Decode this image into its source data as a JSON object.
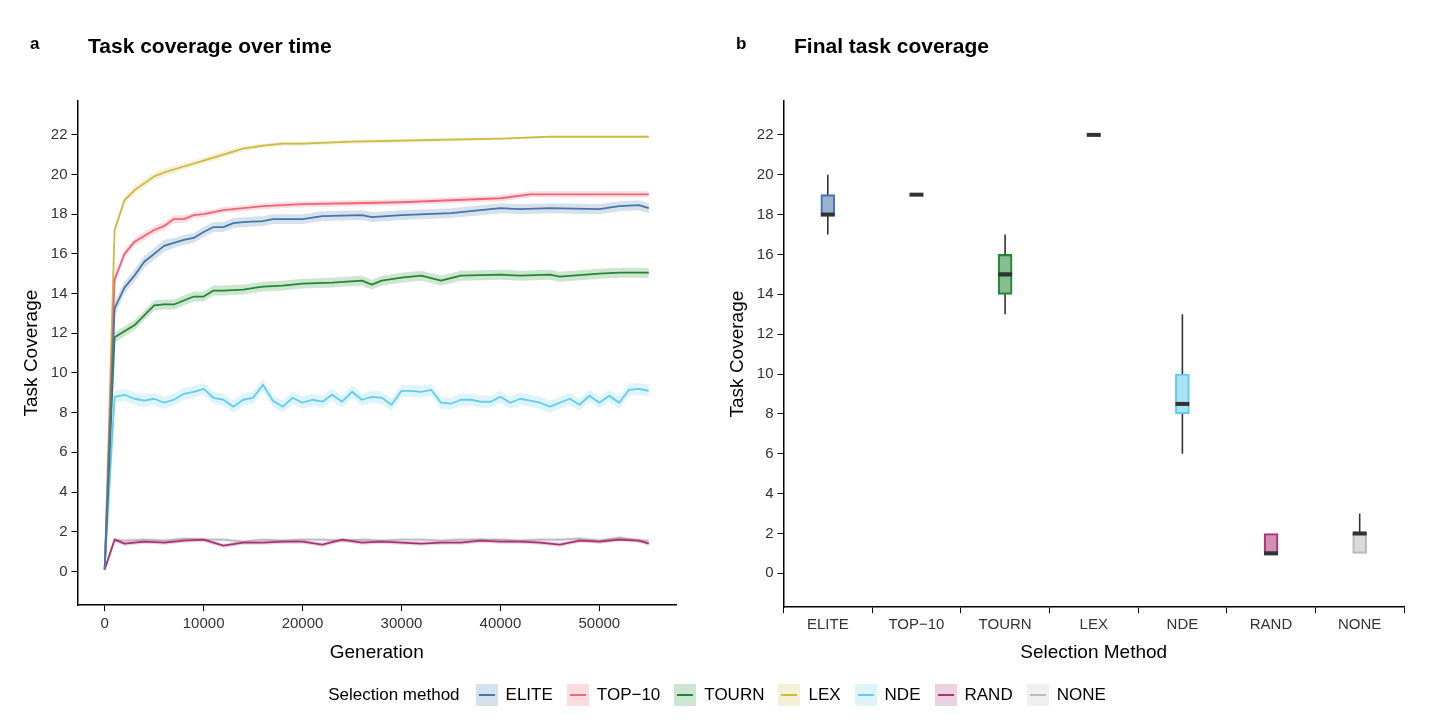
{
  "chart_data": [
    {
      "type": "line",
      "title": "Task coverage over time",
      "xlabel": "Generation",
      "ylabel": "Task Coverage",
      "annotations": [
        "a"
      ],
      "legend": "bottom",
      "legend_title": "Selection method",
      "xlim": [
        -2750,
        57750
      ],
      "ylim": [
        -1.7,
        23.7
      ],
      "xticks": [
        0,
        10000,
        20000,
        30000,
        40000,
        50000
      ],
      "yticks": [
        0,
        2,
        4,
        6,
        8,
        10,
        12,
        14,
        16,
        18,
        20,
        22
      ],
      "series": [
        {
          "name": "ELITE",
          "color": "#4477aa",
          "x": [
            0,
            1000,
            2000,
            3000,
            4000,
            5000,
            6000,
            7000,
            8000,
            9000,
            10000,
            11000,
            12000,
            13000,
            14000,
            16000,
            17000,
            20000,
            22000,
            26000,
            27000,
            30000,
            35000,
            38000,
            40000,
            42000,
            45000,
            50000,
            52000,
            54000,
            55000
          ],
          "values": [
            0.1,
            13.25,
            14.3,
            14.9,
            15.6,
            16.0,
            16.4,
            16.55,
            16.7,
            16.8,
            17.1,
            17.35,
            17.35,
            17.55,
            17.6,
            17.65,
            17.75,
            17.75,
            17.9,
            17.95,
            17.85,
            17.95,
            18.05,
            18.2,
            18.3,
            18.25,
            18.3,
            18.25,
            18.4,
            18.45,
            18.3
          ],
          "lower": [
            0.1,
            12.9,
            14.0,
            14.6,
            15.3,
            15.7,
            16.1,
            16.3,
            16.45,
            16.55,
            16.85,
            17.1,
            17.1,
            17.3,
            17.35,
            17.4,
            17.5,
            17.5,
            17.65,
            17.7,
            17.6,
            17.7,
            17.8,
            17.95,
            18.05,
            18.0,
            18.05,
            18.0,
            18.15,
            18.2,
            18.05
          ],
          "upper": [
            0.1,
            13.6,
            14.6,
            15.2,
            15.9,
            16.3,
            16.7,
            16.8,
            16.95,
            17.05,
            17.35,
            17.6,
            17.6,
            17.8,
            17.85,
            17.9,
            18.0,
            18.0,
            18.15,
            18.2,
            18.1,
            18.2,
            18.3,
            18.45,
            18.55,
            18.5,
            18.55,
            18.5,
            18.65,
            18.7,
            18.55
          ]
        },
        {
          "name": "TOP−10",
          "color": "#ee6677",
          "x": [
            0,
            1000,
            2000,
            3000,
            4000,
            5000,
            6000,
            7000,
            8000,
            9000,
            10000,
            12000,
            14000,
            16000,
            20000,
            25000,
            30000,
            35000,
            40000,
            43000,
            50000,
            55000
          ],
          "values": [
            0.1,
            14.7,
            16.0,
            16.6,
            16.9,
            17.2,
            17.4,
            17.75,
            17.75,
            17.95,
            18.0,
            18.2,
            18.3,
            18.4,
            18.5,
            18.55,
            18.6,
            18.7,
            18.8,
            19.0,
            19.0,
            19.0
          ],
          "lower": [
            0.1,
            14.4,
            15.8,
            16.4,
            16.7,
            17.0,
            17.2,
            17.55,
            17.55,
            17.8,
            17.85,
            18.05,
            18.15,
            18.25,
            18.35,
            18.4,
            18.45,
            18.55,
            18.65,
            18.85,
            18.85,
            18.85
          ],
          "upper": [
            0.1,
            15.0,
            16.2,
            16.8,
            17.1,
            17.4,
            17.6,
            17.95,
            17.95,
            18.1,
            18.15,
            18.35,
            18.45,
            18.55,
            18.65,
            18.7,
            18.75,
            18.85,
            18.95,
            19.15,
            19.15,
            19.15
          ]
        },
        {
          "name": "TOURN",
          "color": "#228833",
          "x": [
            0,
            1000,
            2000,
            3000,
            4000,
            5000,
            6000,
            7000,
            8000,
            9000,
            10000,
            11000,
            12000,
            14000,
            16000,
            18000,
            20000,
            23000,
            26000,
            27000,
            28000,
            30000,
            32000,
            34000,
            36000,
            40000,
            42000,
            45000,
            46000,
            50000,
            52000,
            55000
          ],
          "values": [
            0.1,
            11.8,
            12.1,
            12.4,
            12.9,
            13.4,
            13.45,
            13.45,
            13.65,
            13.85,
            13.85,
            14.15,
            14.15,
            14.2,
            14.35,
            14.4,
            14.5,
            14.55,
            14.65,
            14.45,
            14.65,
            14.8,
            14.9,
            14.65,
            14.9,
            14.95,
            14.9,
            14.95,
            14.85,
            15.0,
            15.05,
            15.05
          ],
          "lower": [
            0.1,
            11.55,
            11.85,
            12.15,
            12.65,
            13.15,
            13.2,
            13.2,
            13.4,
            13.6,
            13.6,
            13.9,
            13.9,
            13.95,
            14.1,
            14.15,
            14.25,
            14.3,
            14.4,
            14.2,
            14.4,
            14.55,
            14.65,
            14.4,
            14.65,
            14.7,
            14.65,
            14.7,
            14.6,
            14.75,
            14.8,
            14.8
          ],
          "upper": [
            0.1,
            12.05,
            12.35,
            12.65,
            13.15,
            13.65,
            13.7,
            13.7,
            13.9,
            14.1,
            14.1,
            14.4,
            14.4,
            14.45,
            14.6,
            14.65,
            14.75,
            14.8,
            14.9,
            14.7,
            14.9,
            15.05,
            15.15,
            14.9,
            15.15,
            15.2,
            15.15,
            15.2,
            15.1,
            15.25,
            15.3,
            15.3
          ]
        },
        {
          "name": "LEX",
          "color": "#ccbb44",
          "x": [
            0,
            1000,
            2000,
            3000,
            4000,
            5000,
            6000,
            8000,
            10000,
            12000,
            14000,
            16000,
            18000,
            20000,
            25000,
            30000,
            35000,
            40000,
            45000,
            50000,
            55000
          ],
          "values": [
            0.1,
            17.2,
            18.7,
            19.2,
            19.55,
            19.9,
            20.1,
            20.4,
            20.7,
            21.0,
            21.3,
            21.45,
            21.55,
            21.55,
            21.65,
            21.7,
            21.75,
            21.8,
            21.9,
            21.9,
            21.9
          ],
          "lower": [
            0.1,
            17.0,
            18.5,
            19.0,
            19.35,
            19.7,
            19.9,
            20.25,
            20.55,
            20.85,
            21.15,
            21.35,
            21.45,
            21.45,
            21.55,
            21.6,
            21.65,
            21.75,
            21.85,
            21.85,
            21.85
          ],
          "upper": [
            0.1,
            17.4,
            18.9,
            19.4,
            19.75,
            20.1,
            20.3,
            20.55,
            20.85,
            21.15,
            21.45,
            21.55,
            21.65,
            21.65,
            21.75,
            21.8,
            21.85,
            21.85,
            21.95,
            21.95,
            21.95
          ]
        },
        {
          "name": "NDE",
          "color": "#66ccee",
          "x": [
            0,
            1000,
            2000,
            3000,
            4000,
            5000,
            6000,
            7000,
            8000,
            9000,
            10000,
            11000,
            12000,
            13000,
            14000,
            15000,
            16000,
            17000,
            18000,
            19000,
            20000,
            21000,
            22000,
            23000,
            24000,
            25000,
            26000,
            27000,
            28000,
            29000,
            30000,
            31000,
            32000,
            33000,
            34000,
            35000,
            36000,
            37000,
            38000,
            39000,
            40000,
            41000,
            42000,
            43000,
            44000,
            45000,
            46000,
            47000,
            48000,
            49000,
            50000,
            51000,
            52000,
            53000,
            54000,
            55000
          ],
          "values": [
            0.1,
            8.8,
            8.9,
            8.7,
            8.6,
            8.7,
            8.5,
            8.65,
            8.95,
            9.05,
            9.2,
            8.75,
            8.65,
            8.3,
            8.65,
            8.75,
            9.4,
            8.6,
            8.3,
            8.75,
            8.5,
            8.65,
            8.55,
            8.9,
            8.55,
            9.05,
            8.65,
            8.8,
            8.75,
            8.4,
            9.1,
            9.1,
            9.05,
            9.15,
            8.5,
            8.45,
            8.65,
            8.65,
            8.55,
            8.55,
            8.8,
            8.5,
            8.7,
            8.6,
            8.5,
            8.3,
            8.5,
            8.7,
            8.4,
            8.85,
            8.5,
            8.85,
            8.5,
            9.15,
            9.2,
            9.1
          ],
          "lower": [
            0.1,
            8.5,
            8.6,
            8.4,
            8.3,
            8.4,
            8.2,
            8.35,
            8.65,
            8.75,
            8.9,
            8.45,
            8.35,
            8.0,
            8.35,
            8.45,
            9.1,
            8.3,
            8.0,
            8.45,
            8.2,
            8.35,
            8.25,
            8.6,
            8.25,
            8.75,
            8.35,
            8.5,
            8.45,
            8.1,
            8.8,
            8.8,
            8.75,
            8.85,
            8.2,
            8.15,
            8.35,
            8.35,
            8.25,
            8.25,
            8.5,
            8.2,
            8.4,
            8.3,
            8.2,
            8.0,
            8.2,
            8.4,
            8.1,
            8.55,
            8.2,
            8.55,
            8.2,
            8.85,
            8.9,
            8.8
          ],
          "upper": [
            0.1,
            9.1,
            9.2,
            9.0,
            8.9,
            9.0,
            8.8,
            8.95,
            9.25,
            9.35,
            9.5,
            9.05,
            8.95,
            8.6,
            8.95,
            9.05,
            9.7,
            8.9,
            8.6,
            9.05,
            8.8,
            8.95,
            8.85,
            9.2,
            8.85,
            9.35,
            8.95,
            9.1,
            9.05,
            8.7,
            9.4,
            9.4,
            9.35,
            9.45,
            8.8,
            8.75,
            8.95,
            8.95,
            8.85,
            8.85,
            9.1,
            8.8,
            9.0,
            8.9,
            8.8,
            8.6,
            8.8,
            9.0,
            8.7,
            9.15,
            8.8,
            9.15,
            8.8,
            9.45,
            9.5,
            9.4
          ]
        },
        {
          "name": "RAND",
          "color": "#aa3377",
          "x": [
            0,
            1000,
            2000,
            4000,
            6000,
            8000,
            10000,
            12000,
            14000,
            16000,
            18000,
            20000,
            22000,
            24000,
            26000,
            28000,
            30000,
            32000,
            34000,
            36000,
            38000,
            40000,
            42000,
            44000,
            46000,
            48000,
            50000,
            52000,
            54000,
            55000
          ],
          "values": [
            0.1,
            1.6,
            1.4,
            1.5,
            1.45,
            1.55,
            1.6,
            1.3,
            1.45,
            1.45,
            1.5,
            1.5,
            1.35,
            1.6,
            1.45,
            1.5,
            1.45,
            1.4,
            1.45,
            1.45,
            1.55,
            1.5,
            1.5,
            1.45,
            1.35,
            1.55,
            1.5,
            1.6,
            1.55,
            1.4
          ],
          "lower": [
            0.1,
            1.5,
            1.3,
            1.4,
            1.35,
            1.45,
            1.5,
            1.2,
            1.35,
            1.35,
            1.4,
            1.4,
            1.25,
            1.5,
            1.35,
            1.4,
            1.35,
            1.3,
            1.35,
            1.35,
            1.45,
            1.4,
            1.4,
            1.35,
            1.25,
            1.45,
            1.4,
            1.5,
            1.45,
            1.3
          ],
          "upper": [
            0.1,
            1.7,
            1.5,
            1.6,
            1.55,
            1.65,
            1.7,
            1.4,
            1.55,
            1.55,
            1.6,
            1.6,
            1.45,
            1.7,
            1.55,
            1.6,
            1.55,
            1.5,
            1.55,
            1.55,
            1.65,
            1.6,
            1.6,
            1.55,
            1.45,
            1.65,
            1.6,
            1.7,
            1.65,
            1.5
          ]
        },
        {
          "name": "NONE",
          "color": "#bbbbbb",
          "x": [
            0,
            1000,
            2000,
            4000,
            6000,
            8000,
            10000,
            12000,
            14000,
            16000,
            18000,
            20000,
            22000,
            24000,
            26000,
            28000,
            30000,
            32000,
            34000,
            36000,
            38000,
            40000,
            42000,
            44000,
            46000,
            48000,
            50000,
            52000,
            54000,
            55000
          ],
          "values": [
            0.1,
            1.6,
            1.55,
            1.6,
            1.55,
            1.65,
            1.6,
            1.6,
            1.5,
            1.6,
            1.55,
            1.6,
            1.6,
            1.55,
            1.6,
            1.55,
            1.6,
            1.6,
            1.55,
            1.6,
            1.6,
            1.6,
            1.55,
            1.6,
            1.6,
            1.65,
            1.55,
            1.7,
            1.55,
            1.55
          ],
          "lower": [
            0.1,
            1.5,
            1.45,
            1.5,
            1.45,
            1.55,
            1.5,
            1.5,
            1.4,
            1.5,
            1.45,
            1.5,
            1.5,
            1.45,
            1.5,
            1.45,
            1.5,
            1.5,
            1.45,
            1.5,
            1.5,
            1.5,
            1.45,
            1.5,
            1.5,
            1.55,
            1.45,
            1.6,
            1.45,
            1.45
          ],
          "upper": [
            0.1,
            1.7,
            1.65,
            1.7,
            1.65,
            1.75,
            1.7,
            1.7,
            1.6,
            1.7,
            1.65,
            1.7,
            1.7,
            1.65,
            1.7,
            1.65,
            1.7,
            1.7,
            1.65,
            1.7,
            1.7,
            1.7,
            1.65,
            1.7,
            1.7,
            1.75,
            1.65,
            1.8,
            1.65,
            1.65
          ]
        }
      ]
    },
    {
      "type": "box",
      "title": "Final task coverage",
      "xlabel": "Selection Method",
      "ylabel": "Task Coverage",
      "annotations": [
        "b"
      ],
      "ylim": [
        -1.7,
        23.7
      ],
      "yticks": [
        0,
        2,
        4,
        6,
        8,
        10,
        12,
        14,
        16,
        18,
        20,
        22
      ],
      "categories": [
        "ELITE",
        "TOP−10",
        "TOURN",
        "LEX",
        "NDE",
        "RAND",
        "NONE"
      ],
      "colors": [
        "#4477aa",
        "#ee6677",
        "#228833",
        "#ccbb44",
        "#66ccee",
        "#aa3377",
        "#bbbbbb"
      ],
      "boxes": [
        {
          "low": 17,
          "q1": 18,
          "median": 18,
          "q3": 19,
          "high": 20
        },
        {
          "low": 19,
          "q1": 19,
          "median": 19,
          "q3": 19,
          "high": 19
        },
        {
          "low": 13,
          "q1": 14,
          "median": 15,
          "q3": 16,
          "high": 17
        },
        {
          "low": 22,
          "q1": 22,
          "median": 22,
          "q3": 22,
          "high": 22
        },
        {
          "low": 6,
          "q1": 8,
          "median": 8.5,
          "q3": 10,
          "high": 13
        },
        {
          "low": 1,
          "q1": 1,
          "median": 1,
          "q3": 2,
          "high": 2
        },
        {
          "low": 1,
          "q1": 1,
          "median": 2,
          "q3": 2,
          "high": 3
        }
      ]
    }
  ]
}
